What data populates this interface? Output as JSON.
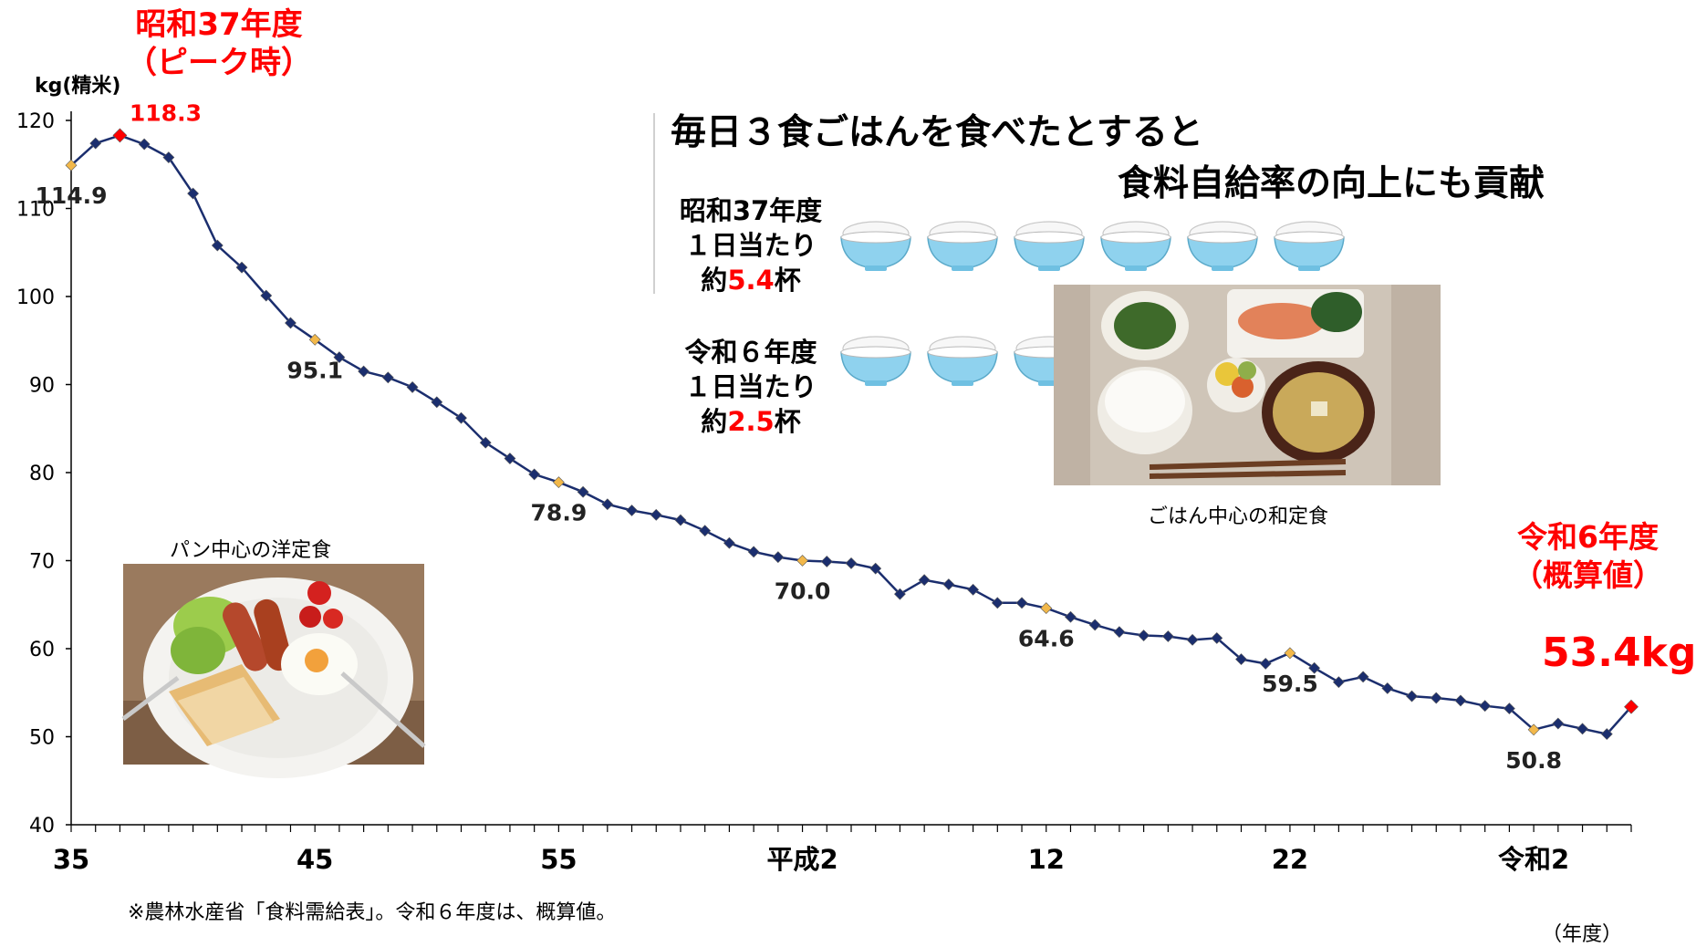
{
  "chart_data": {
    "type": "line",
    "ylabel": "kg(精米)",
    "ylim": [
      40,
      120
    ],
    "y_ticks": [
      "40",
      "50",
      "60",
      "70",
      "80",
      "90",
      "100",
      "110",
      "120"
    ],
    "x_tick_labels": [
      "35",
      "45",
      "55",
      "平成2",
      "12",
      "22",
      "令和2"
    ],
    "x_unit": "（年度）",
    "grid": false,
    "series": [
      {
        "x": [
          "昭和35",
          "昭和36",
          "昭和37",
          "昭和38",
          "昭和39",
          "昭和40",
          "昭和41",
          "昭和42",
          "昭和43",
          "昭和44",
          "昭和45",
          "昭和46",
          "昭和47",
          "昭和48",
          "昭和49",
          "昭和50",
          "昭和51",
          "昭和52",
          "昭和53",
          "昭和54",
          "昭和55",
          "昭和56",
          "昭和57",
          "昭和58",
          "昭和59",
          "昭和60",
          "昭和61",
          "昭和62",
          "昭和63",
          "平成元",
          "平成2",
          "平成3",
          "平成4",
          "平成5",
          "平成6",
          "平成7",
          "平成8",
          "平成9",
          "平成10",
          "平成11",
          "平成12",
          "平成13",
          "平成14",
          "平成15",
          "平成16",
          "平成17",
          "平成18",
          "平成19",
          "平成20",
          "平成21",
          "平成22",
          "平成23",
          "平成24",
          "平成25",
          "平成26",
          "平成27",
          "平成28",
          "平成29",
          "平成30",
          "令和元",
          "令和2",
          "令和3",
          "令和4",
          "令和5",
          "令和6"
        ],
        "values": [
          114.9,
          117.4,
          118.3,
          117.3,
          115.8,
          111.7,
          105.8,
          103.3,
          100.1,
          97.0,
          95.1,
          93.1,
          91.5,
          90.8,
          89.7,
          88.0,
          86.2,
          83.4,
          81.6,
          79.8,
          78.9,
          77.8,
          76.4,
          75.7,
          75.2,
          74.6,
          73.4,
          72.0,
          71.0,
          70.4,
          70.0,
          69.9,
          69.7,
          69.1,
          66.2,
          67.8,
          67.3,
          66.7,
          65.2,
          65.2,
          64.6,
          63.6,
          62.7,
          61.9,
          61.5,
          61.4,
          61.0,
          61.2,
          58.8,
          58.3,
          59.5,
          57.8,
          56.2,
          56.8,
          55.5,
          54.6,
          54.4,
          54.1,
          53.5,
          53.2,
          50.8,
          51.5,
          50.9,
          50.3,
          53.4
        ]
      }
    ],
    "data_labels": [
      {
        "x": "昭和35",
        "text": "114.9"
      },
      {
        "x": "昭和37",
        "text": "118.3"
      },
      {
        "x": "昭和45",
        "text": "95.1"
      },
      {
        "x": "昭和55",
        "text": "78.9"
      },
      {
        "x": "平成2",
        "text": "70.0"
      },
      {
        "x": "平成12",
        "text": "64.6"
      },
      {
        "x": "平成22",
        "text": "59.5"
      },
      {
        "x": "令和2",
        "text": "50.8"
      }
    ],
    "colors": {
      "line": "#1b2e6e",
      "marker": "#1b2e6e",
      "highlight_marker": "#f2b84a",
      "peak_marker": "#ff0000",
      "accent_text": "#ff0000"
    }
  },
  "annotations": {
    "peak_line1": "昭和37年度",
    "peak_line2": "（ピーク時）",
    "peak_value": "118.3",
    "end_line1": "令和6年度",
    "end_line2": "（概算値）",
    "end_value": "53.4kg"
  },
  "headline": {
    "line1": "毎日３食ごはんを食べたとすると",
    "line2": "食料自給率の向上にも貢献"
  },
  "bowls": {
    "then": {
      "line1": "昭和37年度",
      "line2": "１日当たり",
      "prefix": "約",
      "value": "5.4",
      "suffix": "杯",
      "count": 5.4
    },
    "now": {
      "line1": "令和６年度",
      "line2": "１日当たり",
      "prefix": "約",
      "value": "2.5",
      "suffix": "杯",
      "count": 2.5
    }
  },
  "photos": {
    "western_caption": "パン中心の洋定食",
    "japanese_caption": "ごはん中心の和定食"
  },
  "source_note": "※農林水産省「食料需給表」。令和６年度は、概算値。",
  "icons": [
    "rice-bowl-icon"
  ]
}
